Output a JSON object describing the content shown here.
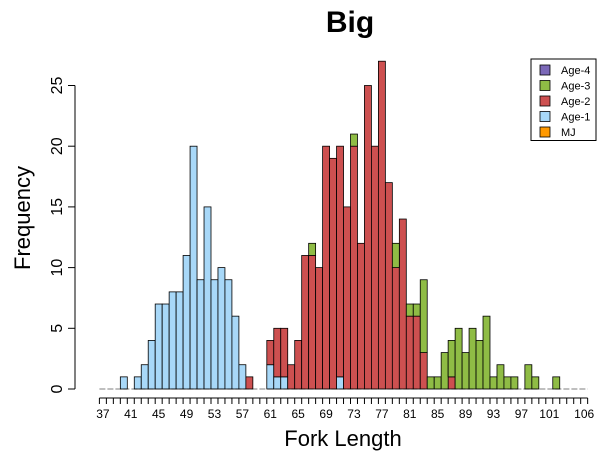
{
  "chart_data": {
    "type": "bar",
    "stacked": true,
    "title": "Big",
    "xlabel": "Fork Length",
    "ylabel": "Frequency",
    "xlim": [
      37,
      107
    ],
    "ylim": [
      0,
      28
    ],
    "x_ticks": [
      37,
      38,
      39,
      40,
      41,
      42,
      43,
      44,
      45,
      46,
      47,
      48,
      49,
      50,
      51,
      52,
      53,
      54,
      55,
      56,
      57,
      58,
      59,
      60,
      61,
      62,
      63,
      64,
      65,
      66,
      67,
      68,
      69,
      70,
      71,
      72,
      73,
      74,
      75,
      76,
      77,
      78,
      79,
      80,
      81,
      82,
      83,
      84,
      85,
      86,
      87,
      88,
      89,
      90,
      91,
      92,
      93,
      94,
      95,
      96,
      97,
      98,
      99,
      100,
      101,
      102,
      103,
      104,
      105,
      106,
      107
    ],
    "x_tick_labels": [
      "37",
      "41",
      "45",
      "49",
      "53",
      "57",
      "61",
      "65",
      "69",
      "73",
      "77",
      "81",
      "85",
      "89",
      "93",
      "97",
      "101",
      "106"
    ],
    "x_tick_label_values": [
      37,
      41,
      45,
      49,
      53,
      57,
      61,
      65,
      69,
      73,
      77,
      81,
      85,
      89,
      93,
      97,
      101,
      106
    ],
    "y_ticks": [
      0,
      5,
      10,
      15,
      20,
      25
    ],
    "grid": false,
    "legend_position": "top-right",
    "series": [
      {
        "name": "MJ",
        "color": "#ff9900",
        "x": [],
        "values": []
      },
      {
        "name": "Age-1",
        "color": "#a8d8f8",
        "x": [
          40,
          42,
          43,
          44,
          45,
          46,
          47,
          48,
          49,
          50,
          51,
          52,
          53,
          54,
          55,
          56,
          57,
          61,
          62,
          63,
          71
        ],
        "values": [
          1,
          1,
          2,
          4,
          7,
          7,
          8,
          8,
          11,
          20,
          9,
          15,
          9,
          10,
          9,
          6,
          2,
          2,
          1,
          1,
          1
        ]
      },
      {
        "name": "Age-2",
        "color": "#cd5050",
        "x": [
          58,
          61,
          62,
          63,
          64,
          65,
          66,
          67,
          68,
          69,
          70,
          71,
          72,
          73,
          74,
          75,
          76,
          77,
          78,
          79,
          80,
          81,
          82,
          83,
          87
        ],
        "values": [
          1,
          2,
          4,
          4,
          2,
          4,
          11,
          11,
          10,
          20,
          19,
          19,
          15,
          20,
          12,
          25,
          20,
          27,
          17,
          10,
          14,
          6,
          6,
          3,
          1
        ]
      },
      {
        "name": "Age-3",
        "color": "#8fbc45",
        "x": [
          67,
          73,
          79,
          81,
          82,
          83,
          84,
          85,
          86,
          87,
          88,
          89,
          90,
          91,
          92,
          93,
          94,
          95,
          96,
          98,
          99,
          102
        ],
        "values": [
          1,
          1,
          2,
          1,
          1,
          6,
          1,
          1,
          3,
          3,
          5,
          3,
          5,
          4,
          6,
          1,
          2,
          1,
          1,
          2,
          1,
          1
        ]
      },
      {
        "name": "Age-4",
        "color": "#7b68b8",
        "x": [],
        "values": []
      }
    ],
    "legend_order": [
      "Age-4",
      "Age-3",
      "Age-2",
      "Age-1",
      "MJ"
    ]
  }
}
